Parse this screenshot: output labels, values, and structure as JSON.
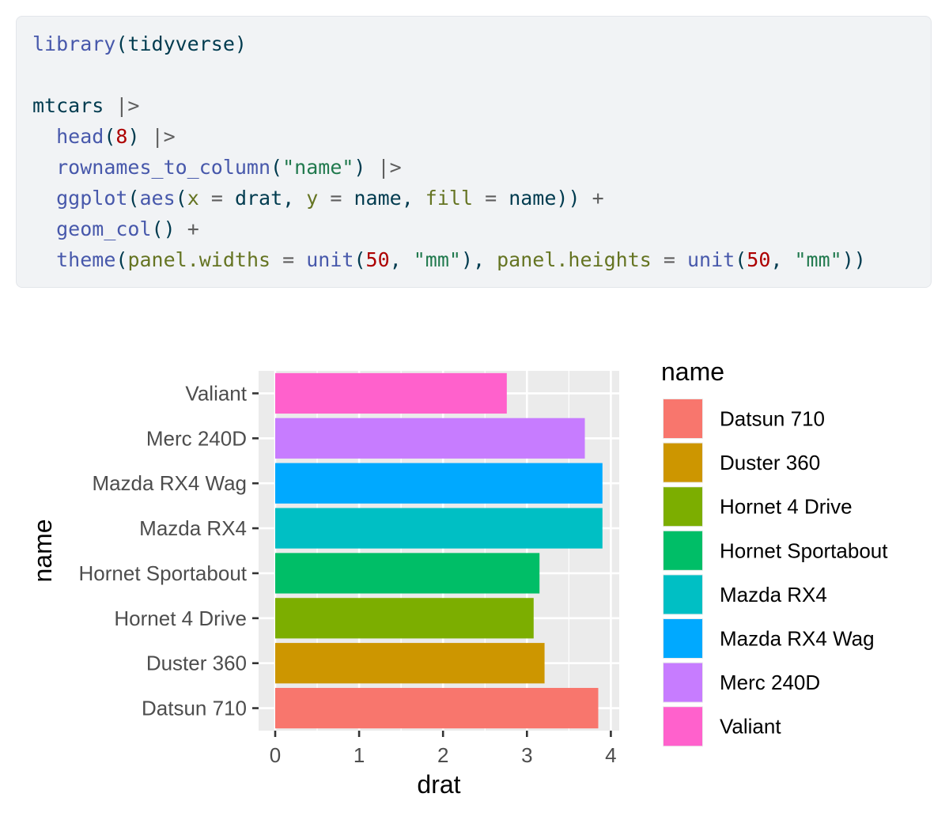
{
  "code": {
    "lines": [
      [
        {
          "t": "library",
          "c": "kw"
        },
        {
          "t": "(tidyverse)",
          "c": "plain"
        }
      ],
      [],
      [
        {
          "t": "mtcars ",
          "c": "plain"
        },
        {
          "t": "|>",
          "c": "op"
        }
      ],
      [
        {
          "t": "  ",
          "c": "plain"
        },
        {
          "t": "head",
          "c": "kw"
        },
        {
          "t": "(",
          "c": "plain"
        },
        {
          "t": "8",
          "c": "num"
        },
        {
          "t": ") ",
          "c": "plain"
        },
        {
          "t": "|>",
          "c": "op"
        }
      ],
      [
        {
          "t": "  ",
          "c": "plain"
        },
        {
          "t": "rownames_to_column",
          "c": "kw"
        },
        {
          "t": "(",
          "c": "plain"
        },
        {
          "t": "\"name\"",
          "c": "str"
        },
        {
          "t": ") ",
          "c": "plain"
        },
        {
          "t": "|>",
          "c": "op"
        }
      ],
      [
        {
          "t": "  ",
          "c": "plain"
        },
        {
          "t": "ggplot",
          "c": "kw"
        },
        {
          "t": "(",
          "c": "plain"
        },
        {
          "t": "aes",
          "c": "kw"
        },
        {
          "t": "(",
          "c": "plain"
        },
        {
          "t": "x",
          "c": "arg"
        },
        {
          "t": " ",
          "c": "plain"
        },
        {
          "t": "=",
          "c": "op"
        },
        {
          "t": " drat, ",
          "c": "plain"
        },
        {
          "t": "y",
          "c": "arg"
        },
        {
          "t": " ",
          "c": "plain"
        },
        {
          "t": "=",
          "c": "op"
        },
        {
          "t": " name, ",
          "c": "plain"
        },
        {
          "t": "fill",
          "c": "arg"
        },
        {
          "t": " ",
          "c": "plain"
        },
        {
          "t": "=",
          "c": "op"
        },
        {
          "t": " name)) ",
          "c": "plain"
        },
        {
          "t": "+",
          "c": "op"
        }
      ],
      [
        {
          "t": "  ",
          "c": "plain"
        },
        {
          "t": "geom_col",
          "c": "kw"
        },
        {
          "t": "() ",
          "c": "plain"
        },
        {
          "t": "+",
          "c": "op"
        }
      ],
      [
        {
          "t": "  ",
          "c": "plain"
        },
        {
          "t": "theme",
          "c": "kw"
        },
        {
          "t": "(",
          "c": "plain"
        },
        {
          "t": "panel.widths",
          "c": "arg"
        },
        {
          "t": " ",
          "c": "plain"
        },
        {
          "t": "=",
          "c": "op"
        },
        {
          "t": " ",
          "c": "plain"
        },
        {
          "t": "unit",
          "c": "kw"
        },
        {
          "t": "(",
          "c": "plain"
        },
        {
          "t": "50",
          "c": "num"
        },
        {
          "t": ", ",
          "c": "plain"
        },
        {
          "t": "\"mm\"",
          "c": "str"
        },
        {
          "t": "), ",
          "c": "plain"
        },
        {
          "t": "panel.heights",
          "c": "arg"
        },
        {
          "t": " ",
          "c": "plain"
        },
        {
          "t": "=",
          "c": "op"
        },
        {
          "t": " ",
          "c": "plain"
        },
        {
          "t": "unit",
          "c": "kw"
        },
        {
          "t": "(",
          "c": "plain"
        },
        {
          "t": "50",
          "c": "num"
        },
        {
          "t": ", ",
          "c": "plain"
        },
        {
          "t": "\"mm\"",
          "c": "str"
        },
        {
          "t": "))",
          "c": "plain"
        }
      ]
    ]
  },
  "chart_data": {
    "type": "bar",
    "orientation": "horizontal",
    "title": "",
    "xlabel": "drat",
    "ylabel": "name",
    "xlim": [
      0,
      4
    ],
    "x_ticks": [
      0,
      1,
      2,
      3,
      4
    ],
    "grid": true,
    "categories": [
      "Datsun 710",
      "Duster 360",
      "Hornet 4 Drive",
      "Hornet Sportabout",
      "Mazda RX4",
      "Mazda RX4 Wag",
      "Merc 240D",
      "Valiant"
    ],
    "values": [
      3.85,
      3.21,
      3.08,
      3.15,
      3.9,
      3.9,
      3.69,
      2.76
    ],
    "colors": [
      "#F8766D",
      "#CD9600",
      "#7CAE00",
      "#00BE67",
      "#00BFC4",
      "#00A9FF",
      "#C77CFF",
      "#FF61CC"
    ],
    "legend": {
      "title": "name",
      "position": "right",
      "entries": [
        "Datsun 710",
        "Duster 360",
        "Hornet 4 Drive",
        "Hornet Sportabout",
        "Mazda RX4",
        "Mazda RX4 Wag",
        "Merc 240D",
        "Valiant"
      ]
    }
  }
}
